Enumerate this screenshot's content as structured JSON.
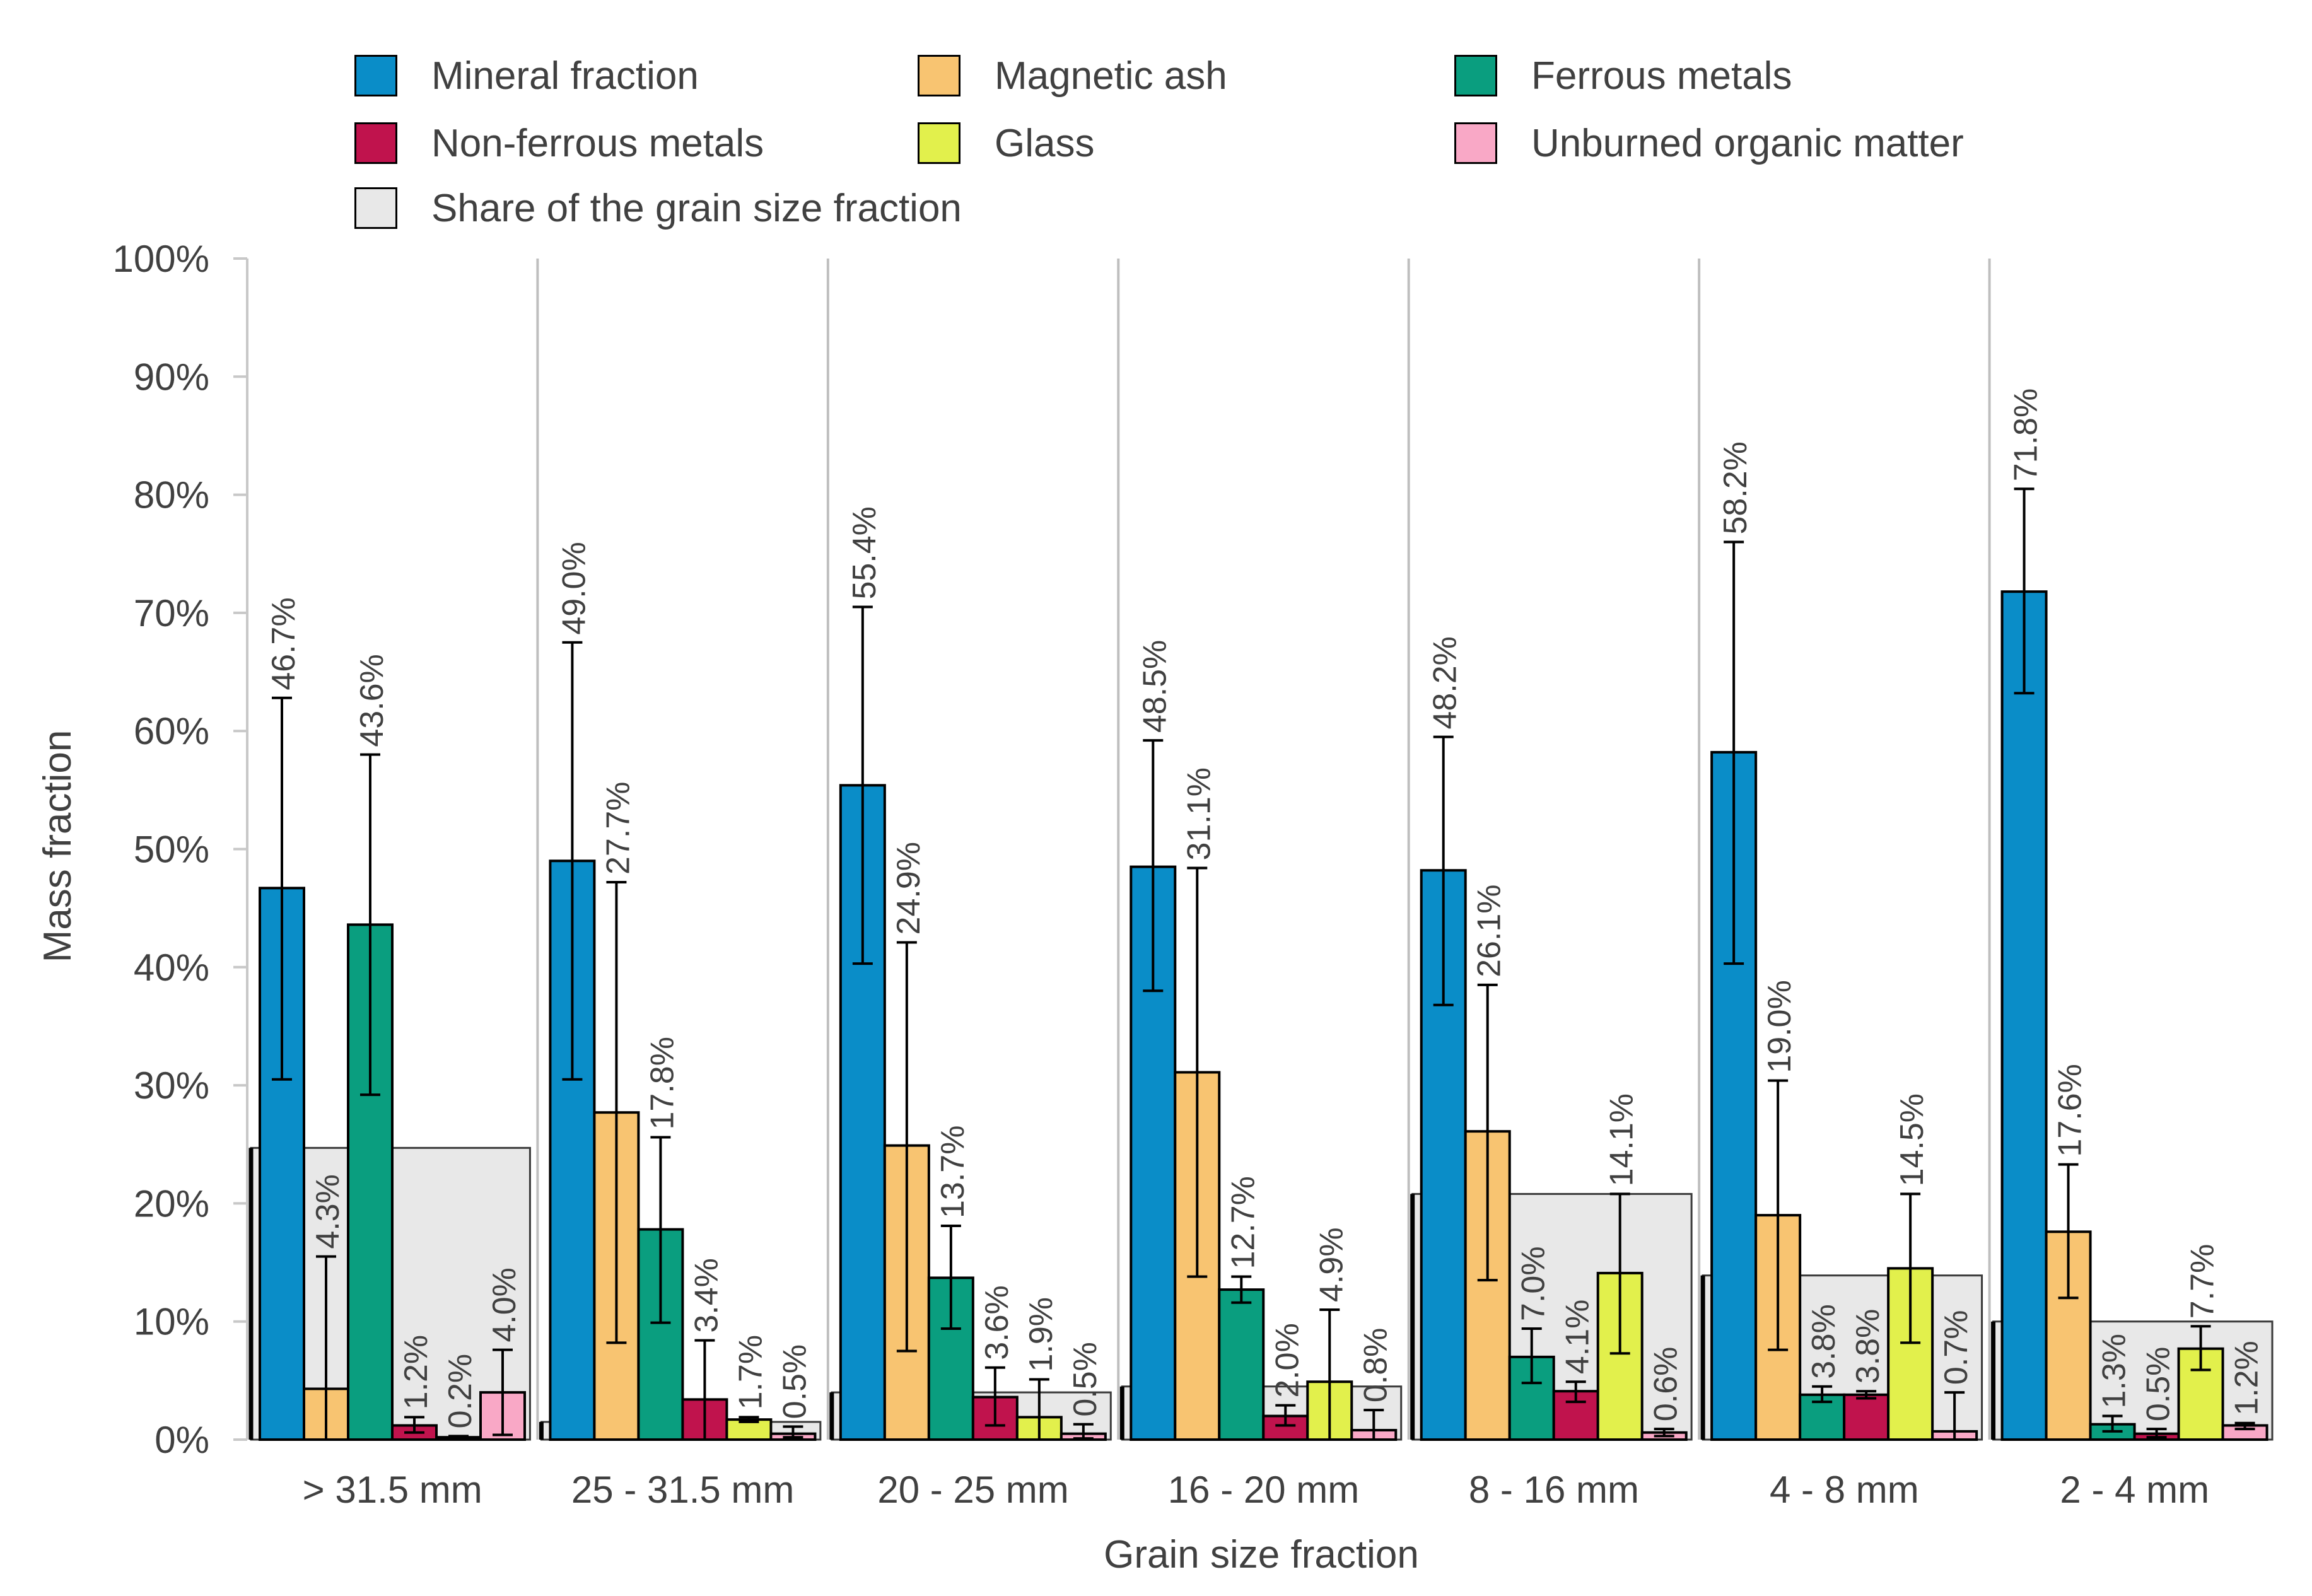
{
  "chart_data": {
    "type": "bar",
    "xlabel": "Grain size fraction",
    "ylabel": "Mass fraction",
    "ylim": [
      0,
      100
    ],
    "yticks": [
      "0%",
      "10%",
      "20%",
      "30%",
      "40%",
      "50%",
      "60%",
      "70%",
      "80%",
      "90%",
      "100%"
    ],
    "categories": [
      " > 31.5 mm",
      "25 - 31.5 mm",
      "20 - 25 mm",
      "16 - 20 mm",
      "8 - 16 mm",
      "4 - 8 mm",
      "2 - 4 mm"
    ],
    "series": [
      {
        "name": "Mineral fraction",
        "color": "#0a8dc8",
        "values": [
          46.7,
          49.0,
          55.4,
          48.5,
          48.2,
          58.2,
          71.8
        ],
        "labels": [
          "46.7%",
          "49.0%",
          "55.4%",
          "48.5%",
          "48.2%",
          "58.2%",
          "71.8%"
        ],
        "err_low": [
          30.5,
          30.5,
          40.3,
          38.0,
          36.8,
          40.3,
          63.2
        ],
        "err_high": [
          62.8,
          67.5,
          70.5,
          59.2,
          59.5,
          76.0,
          80.5
        ]
      },
      {
        "name": "Magnetic ash",
        "color": "#f8c471",
        "values": [
          4.3,
          27.7,
          24.9,
          31.1,
          26.1,
          19.0,
          17.6
        ],
        "labels": [
          "4.3%",
          "27.7%",
          "24.9%",
          "31.1%",
          "26.1%",
          "19.0%",
          "17.6%"
        ],
        "err_low": [
          0.0,
          8.2,
          7.5,
          13.8,
          13.5,
          7.6,
          12.0
        ],
        "err_high": [
          15.5,
          47.2,
          42.1,
          48.4,
          38.5,
          30.4,
          23.3
        ]
      },
      {
        "name": "Ferrous metals",
        "color": "#0a9e7f",
        "values": [
          43.6,
          17.8,
          13.7,
          12.7,
          7.0,
          3.8,
          1.3
        ],
        "labels": [
          "43.6%",
          "17.8%",
          "13.7%",
          "12.7%",
          "7.0%",
          "3.8%",
          "1.3%"
        ],
        "err_low": [
          29.2,
          9.9,
          9.4,
          11.6,
          4.8,
          3.2,
          0.7
        ],
        "err_high": [
          58.0,
          25.6,
          18.1,
          13.8,
          9.4,
          4.5,
          2.0
        ]
      },
      {
        "name": "Non-ferrous metals",
        "color": "#c0134d",
        "values": [
          1.2,
          3.4,
          3.6,
          2.0,
          4.1,
          3.8,
          0.5
        ],
        "labels": [
          "1.2%",
          "3.4%",
          "3.6%",
          "2.0%",
          "4.1%",
          "3.8%",
          "0.5%"
        ],
        "err_low": [
          0.6,
          0.0,
          1.2,
          1.2,
          3.2,
          3.5,
          0.2
        ],
        "err_high": [
          1.9,
          8.4,
          6.1,
          2.9,
          4.9,
          4.1,
          0.9
        ]
      },
      {
        "name": "Glass",
        "color": "#e2f04c",
        "values": [
          0.2,
          1.7,
          1.9,
          4.9,
          14.1,
          14.5,
          7.7
        ],
        "labels": [
          "0.2%",
          "1.7%",
          "1.9%",
          "4.9%",
          "14.1%",
          "14.5%",
          "7.7%"
        ],
        "err_low": [
          0.1,
          1.5,
          0.0,
          0.0,
          7.3,
          8.2,
          5.9
        ],
        "err_high": [
          0.3,
          1.9,
          5.1,
          11.0,
          20.8,
          20.8,
          9.6
        ]
      },
      {
        "name": "Unburned organic matter",
        "color": "#f9a8c6",
        "values": [
          4.0,
          0.5,
          0.5,
          0.8,
          0.6,
          0.7,
          1.2
        ],
        "labels": [
          "4.0%",
          "0.5%",
          "0.5%",
          "0.8%",
          "0.6%",
          "0.7%",
          "1.2%"
        ],
        "err_low": [
          0.4,
          0.2,
          0.1,
          0.0,
          0.3,
          0.0,
          0.9
        ],
        "err_high": [
          7.6,
          1.1,
          1.3,
          2.5,
          0.9,
          4.0,
          1.4
        ]
      }
    ],
    "share_series": {
      "name": "Share of the grain size fraction",
      "color": "#e8e8e8",
      "values": [
        24.7,
        1.5,
        4.0,
        4.5,
        20.8,
        13.9,
        10.0
      ]
    }
  }
}
